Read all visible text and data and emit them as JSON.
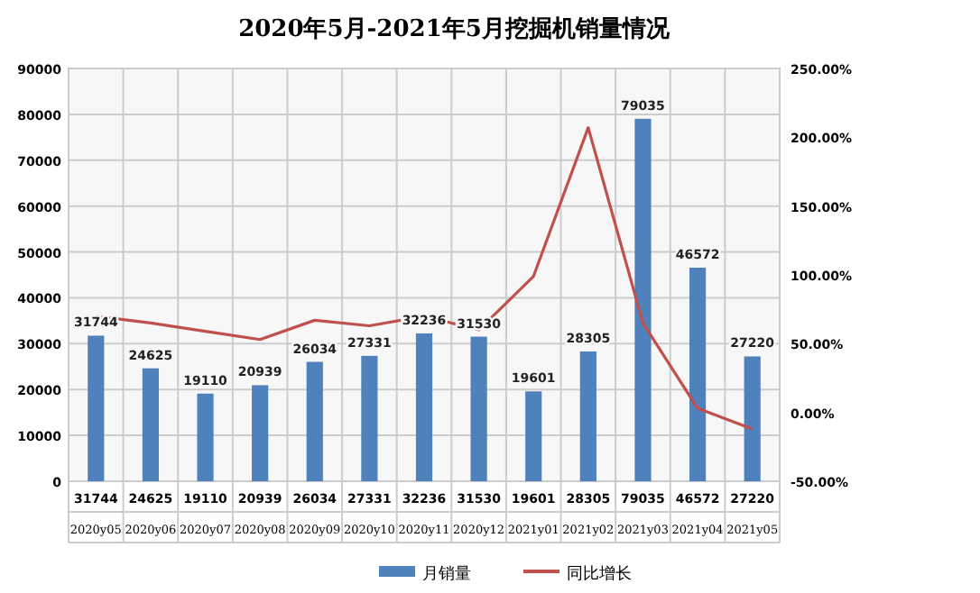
{
  "chart_data": {
    "type": "bar",
    "title": "2020年5月-2021年5月挖掘机销量情况",
    "categories": [
      "2020y05",
      "2020y06",
      "2020y07",
      "2020y08",
      "2020y09",
      "2020y10",
      "2020y11",
      "2020y12",
      "2021y01",
      "2021y02",
      "2021y03",
      "2021y04",
      "2021y05"
    ],
    "series": [
      {
        "name": "月销量",
        "color": "#4f81bd",
        "values": [
          31744,
          24625,
          19110,
          20939,
          26034,
          27331,
          32236,
          31530,
          19601,
          28305,
          79035,
          46572,
          27220
        ],
        "value_labels": [
          "31744",
          "24625",
          "19110",
          "20939",
          "26034",
          "27331",
          "32236",
          "31530",
          "19601",
          "28305",
          "79035",
          "46572",
          "27220"
        ]
      },
      {
        "name": "同比增长",
        "type": "line",
        "axis": "y2",
        "color": "#c0504d",
        "values": [
          70,
          65,
          59,
          53,
          67,
          63,
          70,
          60,
          99,
          207,
          65,
          3,
          -12
        ]
      }
    ],
    "ylim": [
      0,
      90000
    ],
    "yticks": [
      0,
      10000,
      20000,
      30000,
      40000,
      50000,
      60000,
      70000,
      80000,
      90000
    ],
    "y2lim": [
      -50,
      250
    ],
    "y2ticks": [
      {
        "value": -50,
        "label": "-50.00%"
      },
      {
        "value": 0,
        "label": "0.00%"
      },
      {
        "value": 50,
        "label": "50.00%"
      },
      {
        "value": 100,
        "label": "100.00%"
      },
      {
        "value": 150,
        "label": "150.00%"
      },
      {
        "value": 200,
        "label": "200.00%"
      },
      {
        "value": 250,
        "label": "250.00%"
      }
    ],
    "grid": true,
    "legend": "bottom",
    "marker": "none"
  }
}
